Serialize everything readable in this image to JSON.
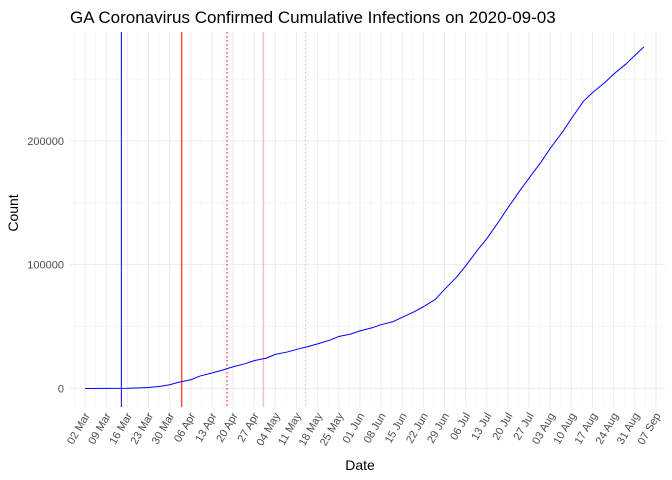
{
  "chart_data": {
    "type": "line",
    "title": "GA Coronavirus Confirmed Cumulative Infections on 2020-09-03",
    "xlabel": "Date",
    "ylabel": "Count",
    "x_type": "date",
    "xlim": [
      "2020-02-26",
      "2020-09-10"
    ],
    "ylim": [
      -15000,
      288000
    ],
    "grid": true,
    "legend": "none",
    "x_ticks": [
      {
        "date": "2020-03-02",
        "label": "02 Mar"
      },
      {
        "date": "2020-03-09",
        "label": "09 Mar"
      },
      {
        "date": "2020-03-16",
        "label": "16 Mar"
      },
      {
        "date": "2020-03-23",
        "label": "23 Mar"
      },
      {
        "date": "2020-03-30",
        "label": "30 Mar"
      },
      {
        "date": "2020-04-06",
        "label": "06 Apr"
      },
      {
        "date": "2020-04-13",
        "label": "13 Apr"
      },
      {
        "date": "2020-04-20",
        "label": "20 Apr"
      },
      {
        "date": "2020-04-27",
        "label": "27 Apr"
      },
      {
        "date": "2020-05-04",
        "label": "04 May"
      },
      {
        "date": "2020-05-11",
        "label": "11 May"
      },
      {
        "date": "2020-05-18",
        "label": "18 May"
      },
      {
        "date": "2020-05-25",
        "label": "25 May"
      },
      {
        "date": "2020-06-01",
        "label": "01 Jun"
      },
      {
        "date": "2020-06-08",
        "label": "08 Jun"
      },
      {
        "date": "2020-06-15",
        "label": "15 Jun"
      },
      {
        "date": "2020-06-22",
        "label": "22 Jun"
      },
      {
        "date": "2020-06-29",
        "label": "29 Jun"
      },
      {
        "date": "2020-07-06",
        "label": "06 Jul"
      },
      {
        "date": "2020-07-13",
        "label": "13 Jul"
      },
      {
        "date": "2020-07-20",
        "label": "20 Jul"
      },
      {
        "date": "2020-07-27",
        "label": "27 Jul"
      },
      {
        "date": "2020-08-03",
        "label": "03 Aug"
      },
      {
        "date": "2020-08-10",
        "label": "10 Aug"
      },
      {
        "date": "2020-08-17",
        "label": "17 Aug"
      },
      {
        "date": "2020-08-24",
        "label": "24 Aug"
      },
      {
        "date": "2020-08-31",
        "label": "31 Aug"
      },
      {
        "date": "2020-09-07",
        "label": "07 Sep"
      }
    ],
    "y_ticks": [
      {
        "value": 0,
        "label": "0"
      },
      {
        "value": 100000,
        "label": "100000"
      },
      {
        "value": 200000,
        "label": "200000"
      }
    ],
    "reference_lines": [
      {
        "date": "2020-03-14",
        "color": "#0000ff",
        "style": "solid"
      },
      {
        "date": "2020-04-03",
        "color": "#ff0000",
        "style": "solid"
      },
      {
        "date": "2020-04-18",
        "color": "#ff0000",
        "style": "dotted"
      },
      {
        "date": "2020-04-30",
        "color": "#ffaaaa",
        "style": "solid"
      },
      {
        "date": "2020-05-14",
        "color": "#ffaaaa",
        "style": "dotted"
      }
    ],
    "series": [
      {
        "color": "#0000ff",
        "points": [
          [
            "2020-03-02",
            0
          ],
          [
            "2020-03-09",
            10
          ],
          [
            "2020-03-16",
            120
          ],
          [
            "2020-03-20",
            480
          ],
          [
            "2020-03-23",
            800
          ],
          [
            "2020-03-27",
            1800
          ],
          [
            "2020-03-30",
            3000
          ],
          [
            "2020-04-02",
            5000
          ],
          [
            "2020-04-06",
            7000
          ],
          [
            "2020-04-09",
            10000
          ],
          [
            "2020-04-13",
            12500
          ],
          [
            "2020-04-16",
            14500
          ],
          [
            "2020-04-20",
            17500
          ],
          [
            "2020-04-24",
            20000
          ],
          [
            "2020-04-27",
            22500
          ],
          [
            "2020-05-01",
            24500
          ],
          [
            "2020-05-04",
            27500
          ],
          [
            "2020-05-08",
            29500
          ],
          [
            "2020-05-11",
            31500
          ],
          [
            "2020-05-15",
            34000
          ],
          [
            "2020-05-18",
            36000
          ],
          [
            "2020-05-22",
            39000
          ],
          [
            "2020-05-25",
            42000
          ],
          [
            "2020-05-29",
            44000
          ],
          [
            "2020-06-01",
            46500
          ],
          [
            "2020-06-05",
            49000
          ],
          [
            "2020-06-08",
            51500
          ],
          [
            "2020-06-12",
            54000
          ],
          [
            "2020-06-15",
            57500
          ],
          [
            "2020-06-19",
            62000
          ],
          [
            "2020-06-22",
            66000
          ],
          [
            "2020-06-26",
            72000
          ],
          [
            "2020-06-29",
            80000
          ],
          [
            "2020-07-03",
            90000
          ],
          [
            "2020-07-06",
            99000
          ],
          [
            "2020-07-10",
            112000
          ],
          [
            "2020-07-13",
            121000
          ],
          [
            "2020-07-17",
            135000
          ],
          [
            "2020-07-20",
            146000
          ],
          [
            "2020-07-24",
            160000
          ],
          [
            "2020-07-27",
            170000
          ],
          [
            "2020-07-31",
            183000
          ],
          [
            "2020-08-03",
            194000
          ],
          [
            "2020-08-07",
            207000
          ],
          [
            "2020-08-10",
            218000
          ],
          [
            "2020-08-14",
            232000
          ],
          [
            "2020-08-17",
            239000
          ],
          [
            "2020-08-21",
            247000
          ],
          [
            "2020-08-24",
            254000
          ],
          [
            "2020-08-28",
            262000
          ],
          [
            "2020-08-31",
            269000
          ],
          [
            "2020-09-03",
            276000
          ]
        ]
      }
    ]
  }
}
